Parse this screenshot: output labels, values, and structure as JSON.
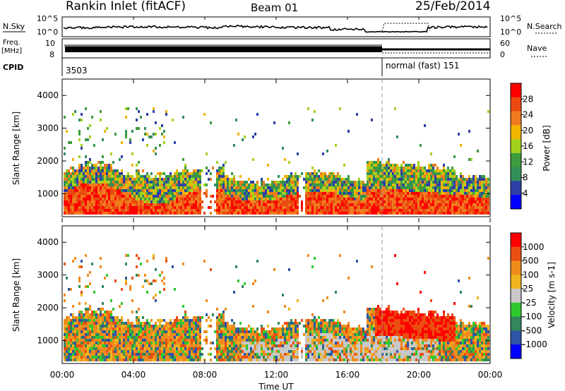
{
  "header": {
    "title": "Rankin Inlet (fitACF)",
    "beam": "Beam 01",
    "date": "25/Feb/2014"
  },
  "top_panels": {
    "nsky_label": "N.Sky",
    "nsky_ticks": [
      "10^5",
      "10^0"
    ],
    "nsearch_label": "N.Search",
    "nsearch_ticks": [
      "10^5",
      "10^0"
    ],
    "freq_label": "Freq.",
    "freq_unit": "[MHz]",
    "freq_ticks": [
      "10",
      "8"
    ],
    "nave_label": "Nave",
    "nave_ticks": [
      "60",
      "0"
    ],
    "cpid_label": "CPID",
    "cpid_first": "3503",
    "cpid_second": "normal (fast) 151"
  },
  "x_axis": {
    "label": "Time UT",
    "ticks": [
      "00:00",
      "04:00",
      "08:00",
      "12:00",
      "16:00",
      "20:00",
      "00:00"
    ]
  },
  "colors": {
    "power_scale": [
      "#0000ff",
      "#2e3fa8",
      "#338f5a",
      "#3c9c3c",
      "#a3d21e",
      "#f2b400",
      "#f07b1e",
      "#ea4a10",
      "#ff0000"
    ],
    "velocity_scale": [
      "#0000ff",
      "#2d55a6",
      "#33875a",
      "#2fc92f",
      "#c8c8c8",
      "#f0b41e",
      "#f08c1e",
      "#ea4e10",
      "#ff0000"
    ]
  },
  "chart_data": [
    {
      "type": "heatmap",
      "name": "power",
      "ylabel": "Slant Range [km]",
      "yticks": [
        "4000",
        "3000",
        "2000",
        "1000"
      ],
      "ylim": [
        300,
        4500
      ],
      "xlim_hours": [
        0,
        24
      ],
      "colorbar_label": "Power [dB]",
      "colorbar_ticks": [
        "28",
        "24",
        "20",
        "16",
        "12",
        "8",
        "4"
      ],
      "colorbar_range": [
        0,
        32
      ]
    },
    {
      "type": "heatmap",
      "name": "velocity",
      "ylabel": "Slant Range [km]",
      "yticks": [
        "4000",
        "3000",
        "2000",
        "1000"
      ],
      "ylim": [
        300,
        4500
      ],
      "xlim_hours": [
        0,
        24
      ],
      "colorbar_label": "Velocity [m s-1]",
      "colorbar_ticks": [
        "1000",
        "500",
        "100",
        "25",
        "-25",
        "-100",
        "-500",
        "-1000"
      ]
    }
  ]
}
